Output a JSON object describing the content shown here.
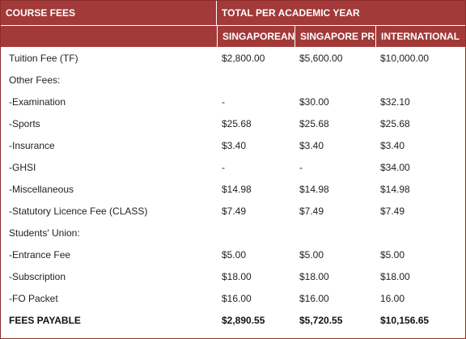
{
  "header": {
    "course_fees": "COURSE FEES",
    "total_per_year": "TOTAL PER ACADEMIC YEAR",
    "columns": [
      "SINGAPOREAN",
      "SINGAPORE PR",
      "INTERNATIONAL"
    ]
  },
  "rows": [
    {
      "label": "Tuition Fee (TF)",
      "values": [
        "$2,800.00",
        "$5,600.00",
        "$10,000.00"
      ]
    },
    {
      "label": "Other Fees:",
      "values": [
        "",
        "",
        ""
      ]
    },
    {
      "label": "-Examination",
      "values": [
        "-",
        "$30.00",
        "$32.10"
      ]
    },
    {
      "label": "-Sports",
      "values": [
        "$25.68",
        "$25.68",
        "$25.68"
      ]
    },
    {
      "label": "-Insurance",
      "values": [
        "$3.40",
        "$3.40",
        "$3.40"
      ]
    },
    {
      "label": "-GHSI",
      "values": [
        "-",
        "-",
        "$34.00"
      ]
    },
    {
      "label": "-Miscellaneous",
      "values": [
        "$14.98",
        "$14.98",
        "$14.98"
      ]
    },
    {
      "label": "-Statutory Licence Fee (CLASS)",
      "values": [
        "$7.49",
        "$7.49",
        "$7.49"
      ]
    },
    {
      "label": "Students' Union:",
      "values": [
        "",
        "",
        ""
      ]
    },
    {
      "label": "-Entrance Fee",
      "values": [
        "$5.00",
        "$5.00",
        "$5.00"
      ]
    },
    {
      "label": "-Subscription",
      "values": [
        "$18.00",
        "$18.00",
        "$18.00"
      ]
    },
    {
      "label": "-FO Packet",
      "values": [
        "$16.00",
        "$16.00",
        "16.00"
      ]
    }
  ],
  "total": {
    "label": "FEES PAYABLE",
    "values": [
      "$2,890.55",
      "$5,720.55",
      "$10,156.65"
    ]
  },
  "colors": {
    "header_bg": "#a23a3a",
    "border": "#8e2a2a"
  }
}
